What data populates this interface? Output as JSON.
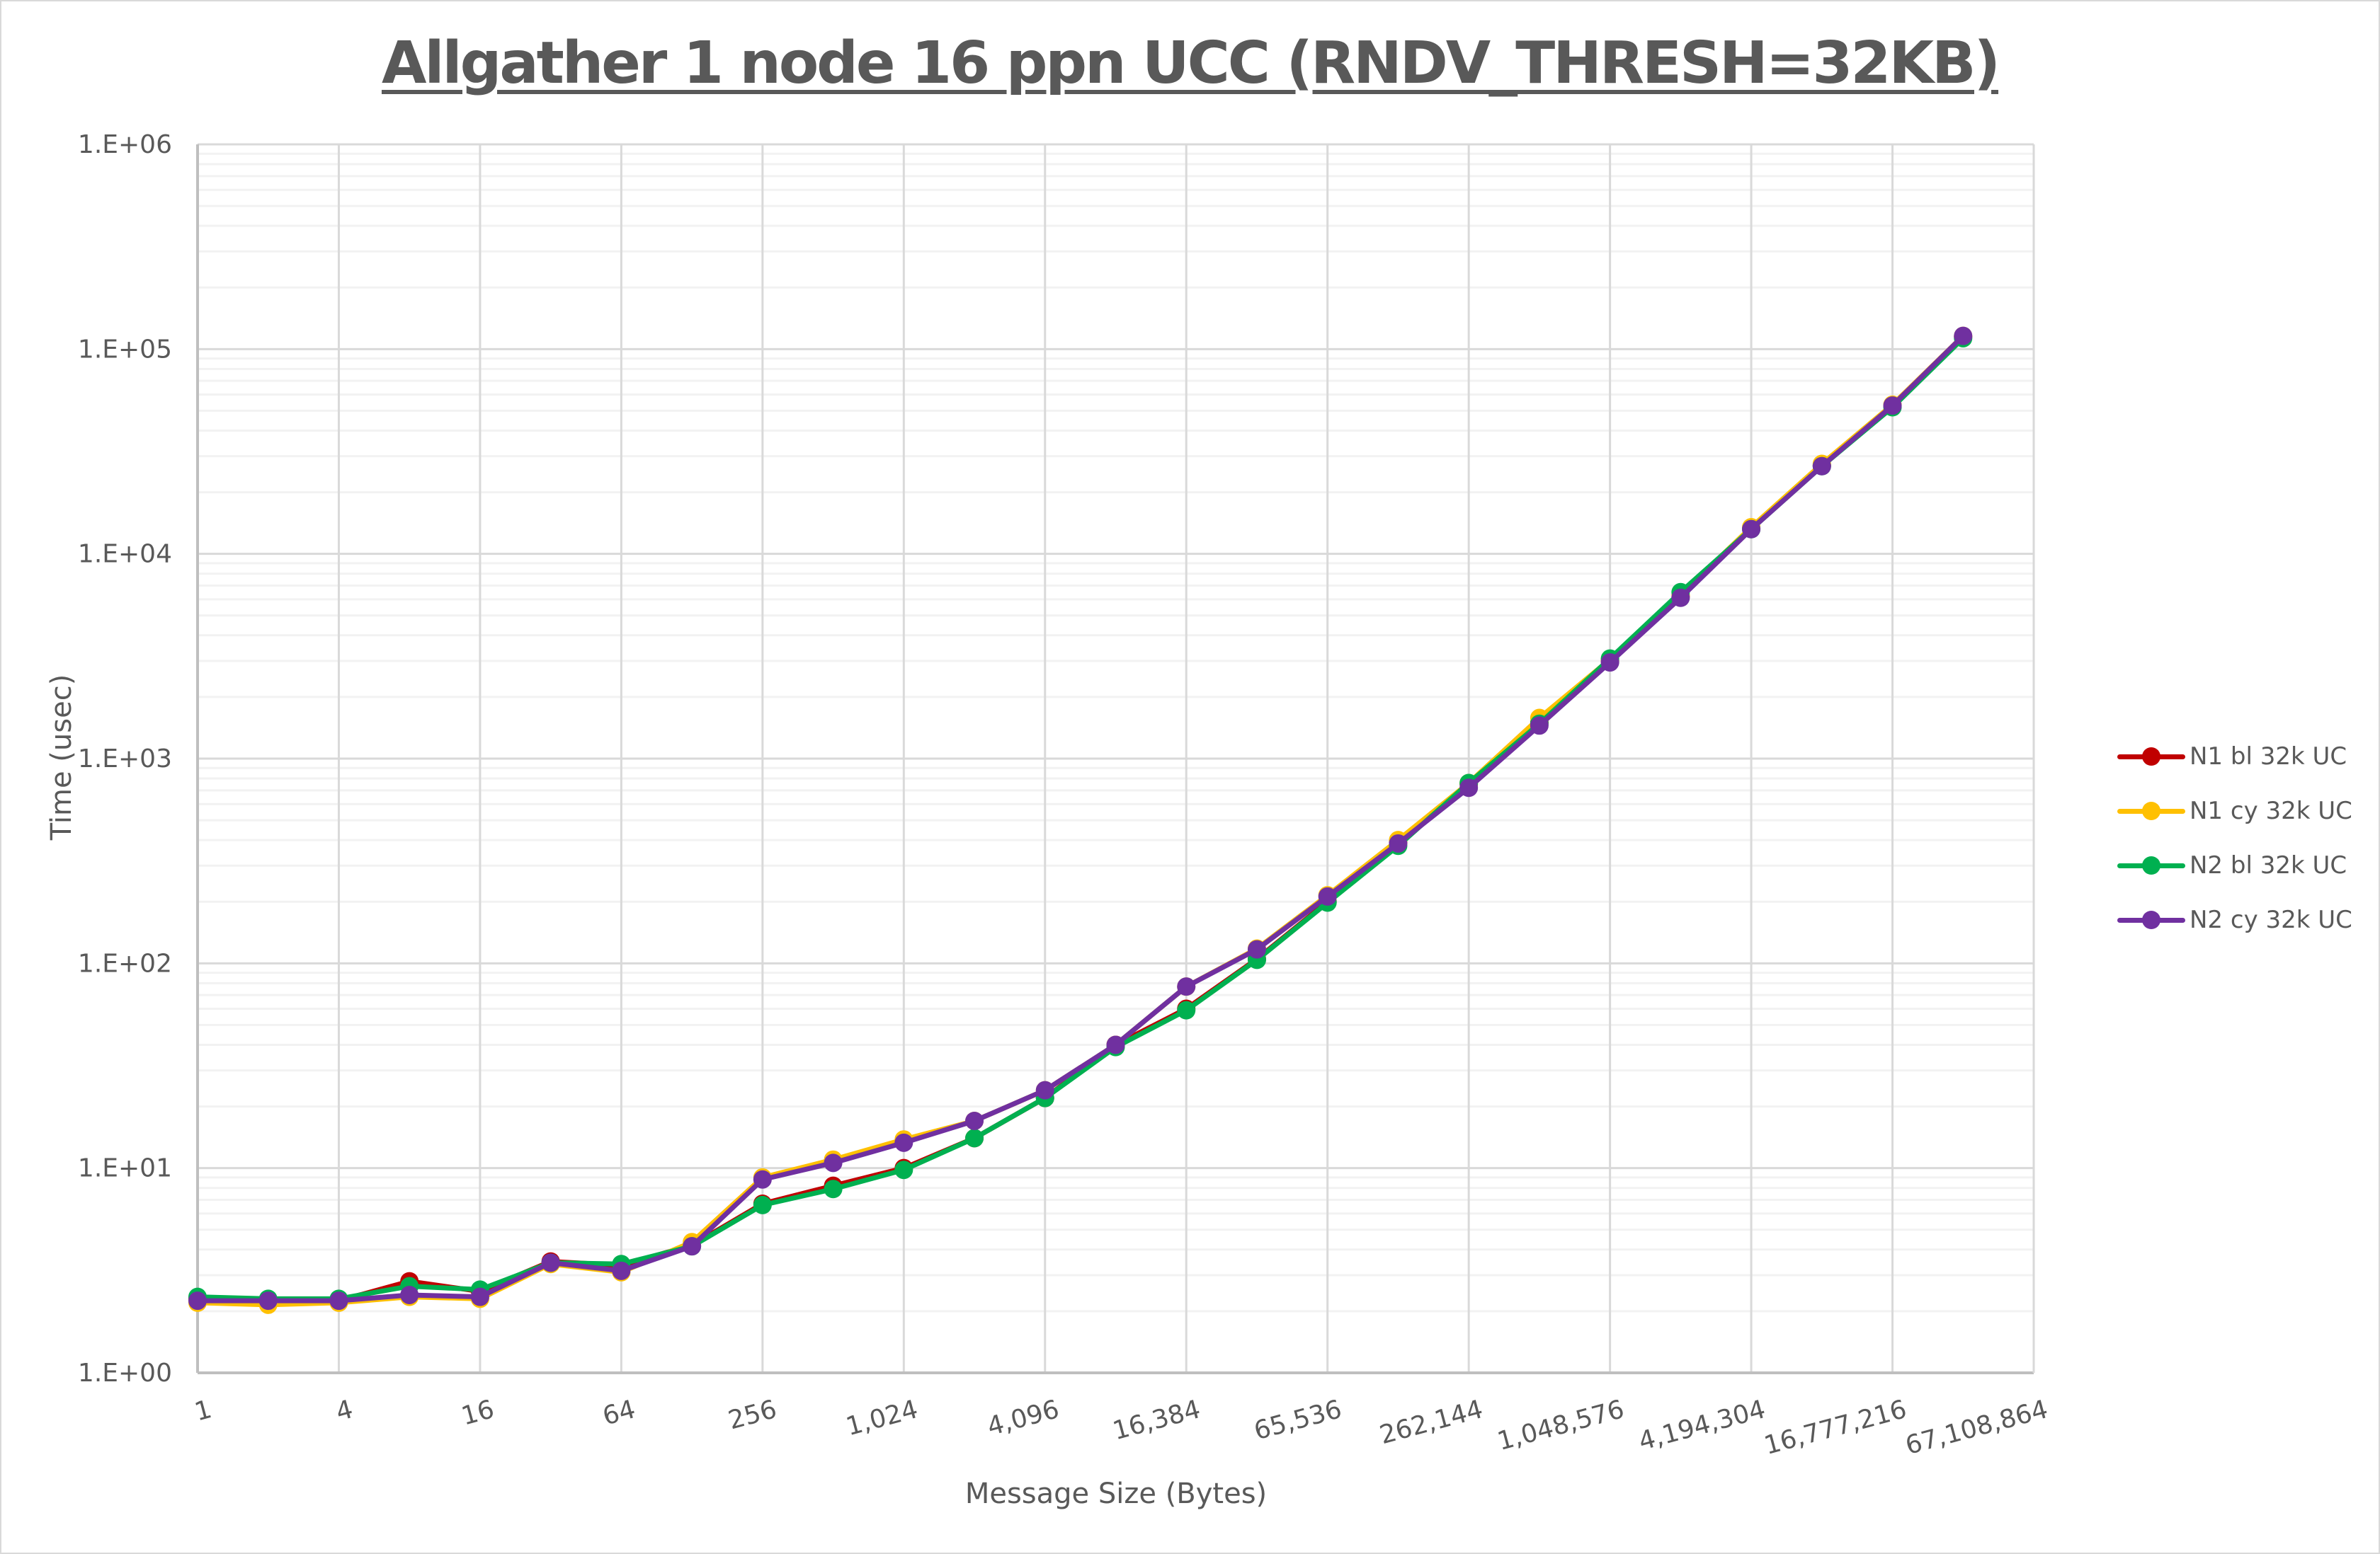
{
  "chart_data": {
    "type": "line",
    "title": "Allgather 1 node 16 ppn UCC (RNDV_THRESH=32KB)",
    "xlabel": "Message Size (Bytes)",
    "ylabel": "Time (usec)",
    "yscale": "log",
    "ylim": [
      1,
      1000000
    ],
    "ytick_labels": [
      "1.E+00",
      "1.E+01",
      "1.E+02",
      "1.E+03",
      "1.E+04",
      "1.E+05",
      "1.E+06"
    ],
    "xscale": "log2",
    "xtick_labels": [
      "1",
      "4",
      "16",
      "64",
      "256",
      "1,024",
      "4,096",
      "16,384",
      "65,536",
      "262,144",
      "1,048,576",
      "4,194,304",
      "16,777,216",
      "67,108,864"
    ],
    "grid": true,
    "legend_position": "right",
    "x": [
      1,
      2,
      4,
      8,
      16,
      32,
      64,
      128,
      256,
      512,
      1024,
      2048,
      4096,
      8192,
      16384,
      32768,
      65536,
      131072,
      262144,
      524288,
      1048576,
      2097152,
      4194304,
      8388608,
      16777216,
      33554432
    ],
    "series": [
      {
        "name": "N1 bl 32k UC",
        "color": "#c00000",
        "values": [
          2.3,
          2.25,
          2.25,
          2.8,
          2.5,
          3.5,
          3.35,
          4.2,
          6.7,
          8.2,
          10.0,
          14.0,
          22,
          40,
          60,
          105,
          200,
          390,
          750,
          1500,
          3000,
          6200,
          13300,
          27000,
          53000,
          115000
        ]
      },
      {
        "name": "N1 cy 32k UC",
        "color": "#ffc000",
        "values": [
          2.2,
          2.15,
          2.2,
          2.35,
          2.3,
          3.4,
          3.1,
          4.35,
          9.0,
          11.0,
          13.8,
          17.0,
          24,
          40,
          77,
          118,
          215,
          400,
          760,
          1580,
          3050,
          6300,
          13500,
          27500,
          53500,
          116000
        ]
      },
      {
        "name": "N2 bl 32k UC",
        "color": "#00b050",
        "values": [
          2.35,
          2.3,
          2.3,
          2.65,
          2.55,
          3.45,
          3.4,
          4.15,
          6.6,
          7.9,
          9.8,
          14.0,
          22,
          39,
          59,
          104,
          198,
          375,
          760,
          1480,
          3080,
          6500,
          13200,
          26800,
          52000,
          113000
        ]
      },
      {
        "name": "N2 cy 32k UC",
        "color": "#7030a0",
        "values": [
          2.25,
          2.25,
          2.25,
          2.4,
          2.35,
          3.45,
          3.15,
          4.15,
          8.8,
          10.6,
          13.3,
          17.0,
          24,
          40,
          77,
          117,
          212,
          385,
          720,
          1450,
          2950,
          6100,
          13200,
          26800,
          53000,
          116000
        ]
      }
    ]
  },
  "legend": {
    "items": [
      {
        "label": "N1 bl 32k UC",
        "color": "#c00000"
      },
      {
        "label": "N1 cy 32k UC",
        "color": "#ffc000"
      },
      {
        "label": "N2 bl 32k UC",
        "color": "#00b050"
      },
      {
        "label": "N2 cy 32k UC",
        "color": "#7030a0"
      }
    ]
  },
  "colors": {
    "text": "#595959",
    "major_grid": "#d9d9d9",
    "minor_grid": "#f2f2f2",
    "axis": "#bfbfbf"
  }
}
